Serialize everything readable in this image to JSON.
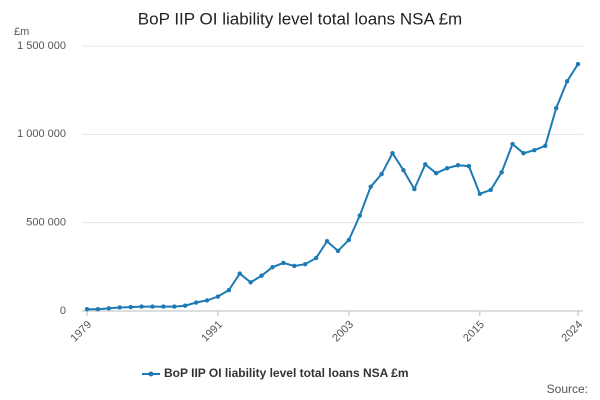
{
  "chart_data": {
    "type": "line",
    "title": "BoP IIP OI liability level total loans NSA £m",
    "y_unit": "£m",
    "source_label": "Source:",
    "x": [
      1979,
      1980,
      1981,
      1982,
      1983,
      1984,
      1985,
      1986,
      1987,
      1988,
      1989,
      1990,
      1991,
      1992,
      1993,
      1994,
      1995,
      1996,
      1997,
      1998,
      1999,
      2000,
      2001,
      2002,
      2003,
      2004,
      2005,
      2006,
      2007,
      2008,
      2009,
      2010,
      2011,
      2012,
      2013,
      2014,
      2015,
      2016,
      2017,
      2018,
      2019,
      2020,
      2021,
      2022,
      2023,
      2024
    ],
    "series": [
      {
        "name": "BoP IIP OI liability level total loans NSA £m",
        "color": "#1d7ab5",
        "values": [
          10000,
          10000,
          15000,
          20000,
          22000,
          25000,
          25000,
          25000,
          25000,
          30000,
          48000,
          60000,
          82000,
          118000,
          212000,
          162000,
          200000,
          248000,
          272000,
          255000,
          265000,
          300000,
          395000,
          340000,
          402000,
          540000,
          703000,
          775000,
          893000,
          797000,
          690000,
          830000,
          780000,
          808000,
          825000,
          820000,
          663000,
          685000,
          785000,
          945000,
          893000,
          910000,
          935000,
          1148000,
          1300000,
          1398000
        ]
      }
    ],
    "xlim": [
      1979,
      2024
    ],
    "xticks": [
      1979,
      1991,
      2003,
      2015,
      2024
    ],
    "ylim": [
      0,
      1500000
    ],
    "yticks": [
      0,
      {
        "value": 500000,
        "label": "500 000"
      },
      {
        "value": 1000000,
        "label": "1 000 000"
      },
      {
        "value": 1500000,
        "label": "1 500 000"
      }
    ],
    "grid": true,
    "legend": "bottom"
  }
}
